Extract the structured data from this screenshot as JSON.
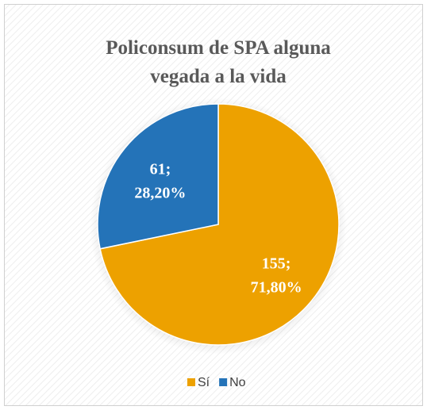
{
  "chart_data": {
    "type": "pie",
    "title": "Policonsum de SPA alguna vegada a la vida",
    "categories": [
      "Sí",
      "No"
    ],
    "values": [
      155,
      61
    ],
    "value_labels": [
      "155;",
      "61;"
    ],
    "percentages": [
      71.8,
      28.2
    ],
    "percentage_labels": [
      "71,80%",
      "28,20%"
    ],
    "colors": [
      "#EDA100",
      "#2473B8"
    ],
    "legend": "bottom"
  }
}
